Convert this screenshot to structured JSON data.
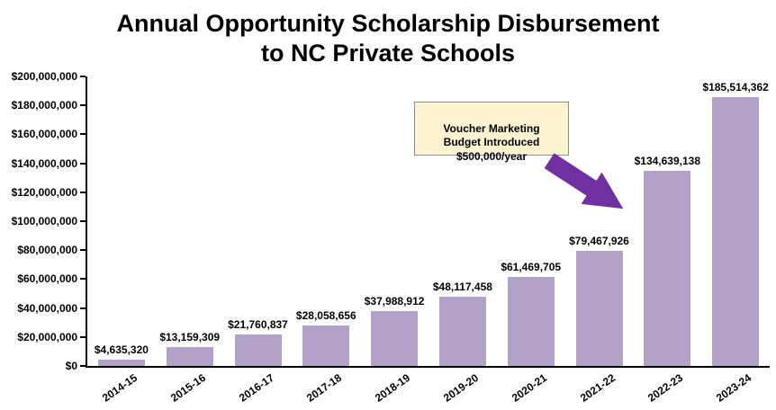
{
  "title": {
    "line1": "Annual Opportunity Scholarship Disbursement",
    "line2": "to NC Private Schools"
  },
  "chart_data": {
    "type": "bar",
    "title": "Annual Opportunity Scholarship Disbursement to NC Private Schools",
    "categories": [
      "2014-15",
      "2015-16",
      "2016-17",
      "2017-18",
      "2018-19",
      "2019-20",
      "2020-21",
      "2021-22",
      "2022-23",
      "2023-24"
    ],
    "values": [
      4635320,
      13159309,
      21760837,
      28058656,
      37988912,
      48117458,
      61469705,
      79467926,
      134639138,
      185514362
    ],
    "value_labels": [
      "$4,635,320",
      "$13,159,309",
      "$21,760,837",
      "$28,058,656",
      "$37,988,912",
      "$48,117,458",
      "$61,469,705",
      "$79,467,926",
      "$134,639,138",
      "$185,514,362"
    ],
    "xlabel": "",
    "ylabel": "",
    "ylim": [
      0,
      200000000
    ],
    "ytick_interval": 20000000,
    "ytick_labels": [
      "$0",
      "$20,000,000",
      "$40,000,000",
      "$60,000,000",
      "$80,000,000",
      "$100,000,000",
      "$120,000,000",
      "$140,000,000",
      "$160,000,000",
      "$180,000,000",
      "$200,000,000"
    ],
    "grid": false,
    "legend": false,
    "bar_color": "#b3a2c7",
    "annotation": {
      "text": "Voucher Marketing\nBudget Introduced\n$500,000/year",
      "box_fill": "#fdf3d1",
      "arrow_color": "#7030a0",
      "points_to_category": "2022-23"
    }
  }
}
